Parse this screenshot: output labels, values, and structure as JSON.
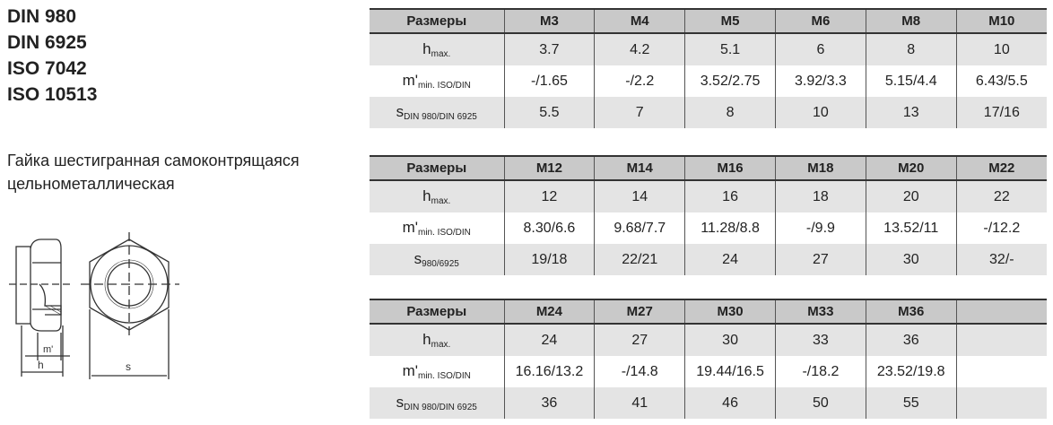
{
  "standards": [
    "DIN 980",
    "DIN 6925",
    "ISO 7042",
    "ISO 10513"
  ],
  "description": [
    "Гайка шестигранная самоконтрящаяся",
    "цельнометаллическая"
  ],
  "drawing_labels": {
    "m": "m'",
    "h": "h",
    "s": "s"
  },
  "tables": [
    {
      "header": [
        "Размеры",
        "M3",
        "M4",
        "M5",
        "M6",
        "M8",
        "M10"
      ],
      "rows": [
        {
          "label": "h",
          "sub": "max.",
          "values": [
            "3.7",
            "4.2",
            "5.1",
            "6",
            "8",
            "10"
          ]
        },
        {
          "label": "m'",
          "sub": "min. ISO/DIN",
          "values": [
            "-/1.65",
            "-/2.2",
            "3.52/2.75",
            "3.92/3.3",
            "5.15/4.4",
            "6.43/5.5"
          ]
        },
        {
          "label": "s",
          "sub": "DIN 980/DIN 6925",
          "values": [
            "5.5",
            "7",
            "8",
            "10",
            "13",
            "17/16"
          ]
        }
      ]
    },
    {
      "header": [
        "Размеры",
        "M12",
        "M14",
        "M16",
        "M18",
        "M20",
        "M22"
      ],
      "rows": [
        {
          "label": "h",
          "sub": "max.",
          "values": [
            "12",
            "14",
            "16",
            "18",
            "20",
            "22"
          ]
        },
        {
          "label": "m'",
          "sub": "min. ISO/DIN",
          "values": [
            "8.30/6.6",
            "9.68/7.7",
            "11.28/8.8",
            "-/9.9",
            "13.52/11",
            "-/12.2"
          ]
        },
        {
          "label": "s",
          "sub": "980/6925",
          "values": [
            "19/18",
            "22/21",
            "24",
            "27",
            "30",
            "32/-"
          ]
        }
      ]
    },
    {
      "header": [
        "Размеры",
        "M24",
        "M27",
        "M30",
        "M33",
        "M36",
        ""
      ],
      "rows": [
        {
          "label": "h",
          "sub": "max.",
          "values": [
            "24",
            "27",
            "30",
            "33",
            "36",
            ""
          ]
        },
        {
          "label": "m'",
          "sub": "min. ISO/DIN",
          "values": [
            "16.16/13.2",
            "-/14.8",
            "19.44/16.5",
            "-/18.2",
            "23.52/19.8",
            ""
          ]
        },
        {
          "label": "s",
          "sub": "DIN 980/DIN 6925",
          "values": [
            "36",
            "41",
            "46",
            "50",
            "55",
            ""
          ]
        }
      ]
    }
  ]
}
